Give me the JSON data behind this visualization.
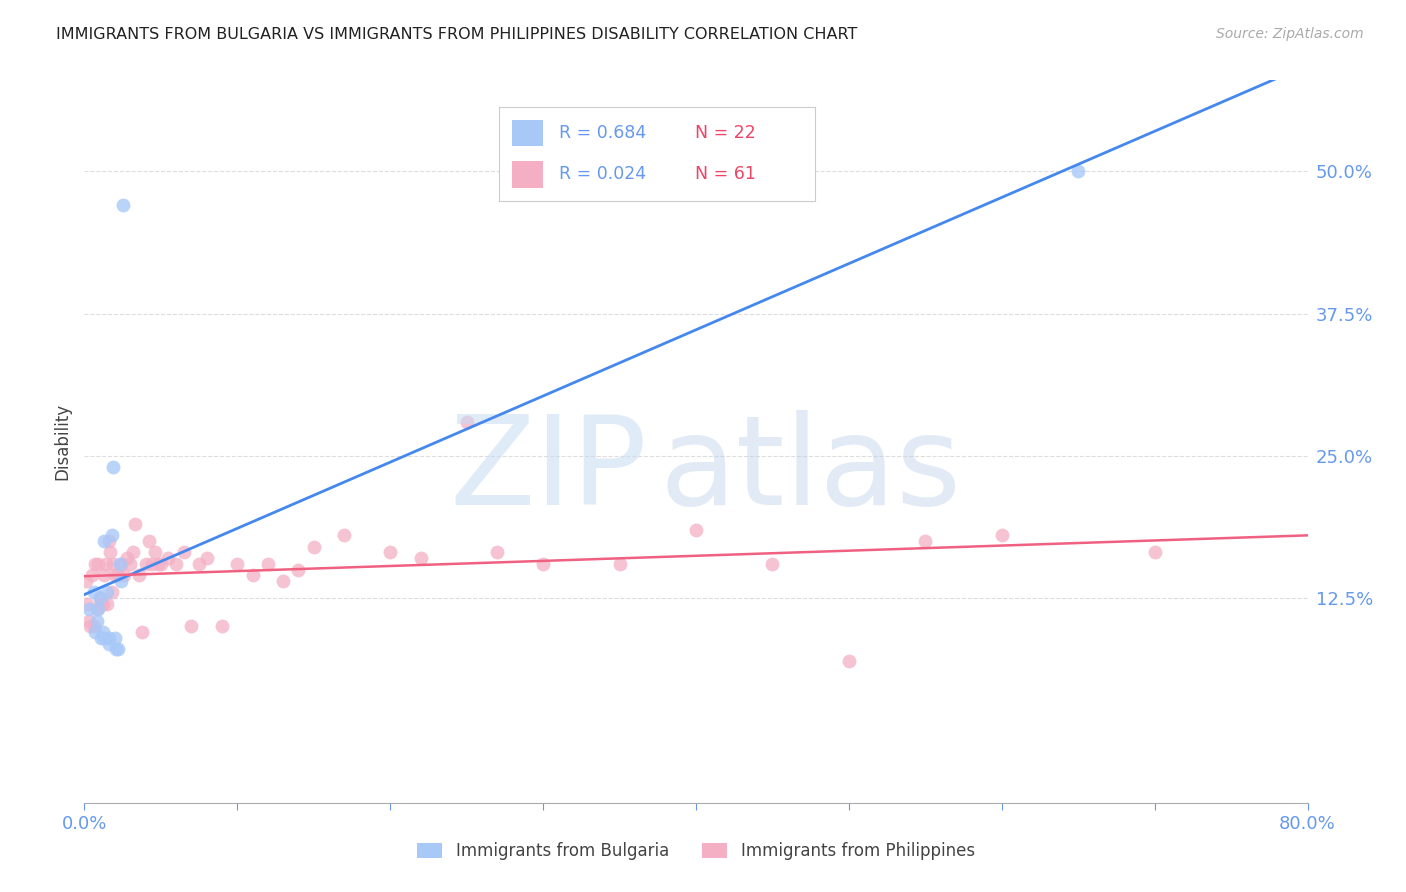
{
  "title": "IMMIGRANTS FROM BULGARIA VS IMMIGRANTS FROM PHILIPPINES DISABILITY CORRELATION CHART",
  "source_text": "Source: ZipAtlas.com",
  "ylabel": "Disability",
  "xlim": [
    0.0,
    0.8
  ],
  "ylim": [
    -0.055,
    0.58
  ],
  "yticks": [
    0.125,
    0.25,
    0.375,
    0.5
  ],
  "ytick_labels": [
    "12.5%",
    "25.0%",
    "37.5%",
    "50.0%"
  ],
  "xticks": [
    0.0,
    0.1,
    0.2,
    0.3,
    0.4,
    0.5,
    0.6,
    0.7,
    0.8
  ],
  "xtick_labels": [
    "0.0%",
    "",
    "",
    "",
    "",
    "",
    "",
    "",
    "80.0%"
  ],
  "bulgaria_color": "#a8c8f8",
  "philippines_color": "#f4afc4",
  "bulgaria_line_color": "#4488ee",
  "philippines_line_color": "#f06080",
  "tick_color": "#6699ee",
  "grid_color": "#dddddd",
  "legend_r_bulgaria": "R = 0.684",
  "legend_n_bulgaria": "N = 22",
  "legend_r_philippines": "R = 0.024",
  "legend_n_philippines": "N = 61",
  "legend_color_r": "#6699ee",
  "legend_color_n": "#ee4466",
  "bulgaria_x": [
    0.003,
    0.006,
    0.007,
    0.008,
    0.009,
    0.01,
    0.011,
    0.012,
    0.013,
    0.013,
    0.015,
    0.016,
    0.016,
    0.018,
    0.019,
    0.02,
    0.021,
    0.022,
    0.023,
    0.024,
    0.025,
    0.65
  ],
  "bulgaria_y": [
    0.115,
    0.13,
    0.095,
    0.105,
    0.115,
    0.125,
    0.09,
    0.095,
    0.175,
    0.09,
    0.13,
    0.09,
    0.085,
    0.18,
    0.24,
    0.09,
    0.08,
    0.08,
    0.155,
    0.14,
    0.47,
    0.5
  ],
  "philippines_x": [
    0.001,
    0.002,
    0.003,
    0.004,
    0.005,
    0.006,
    0.007,
    0.008,
    0.009,
    0.01,
    0.011,
    0.012,
    0.013,
    0.014,
    0.015,
    0.016,
    0.017,
    0.018,
    0.019,
    0.02,
    0.022,
    0.024,
    0.026,
    0.028,
    0.03,
    0.032,
    0.033,
    0.036,
    0.038,
    0.04,
    0.042,
    0.044,
    0.046,
    0.048,
    0.05,
    0.055,
    0.06,
    0.065,
    0.07,
    0.075,
    0.08,
    0.09,
    0.1,
    0.11,
    0.12,
    0.13,
    0.14,
    0.15,
    0.17,
    0.2,
    0.22,
    0.25,
    0.27,
    0.3,
    0.35,
    0.4,
    0.45,
    0.5,
    0.55,
    0.6,
    0.7
  ],
  "philippines_y": [
    0.14,
    0.12,
    0.105,
    0.1,
    0.145,
    0.1,
    0.155,
    0.115,
    0.155,
    0.125,
    0.12,
    0.12,
    0.145,
    0.155,
    0.12,
    0.175,
    0.165,
    0.13,
    0.155,
    0.145,
    0.145,
    0.155,
    0.145,
    0.16,
    0.155,
    0.165,
    0.19,
    0.145,
    0.095,
    0.155,
    0.175,
    0.155,
    0.165,
    0.155,
    0.155,
    0.16,
    0.155,
    0.165,
    0.1,
    0.155,
    0.16,
    0.1,
    0.155,
    0.145,
    0.155,
    0.14,
    0.15,
    0.17,
    0.18,
    0.165,
    0.16,
    0.28,
    0.165,
    0.155,
    0.155,
    0.185,
    0.155,
    0.07,
    0.175,
    0.18,
    0.165
  ],
  "watermark_zip_color": "#c8dcf4",
  "watermark_atlas_color": "#b8cce8"
}
